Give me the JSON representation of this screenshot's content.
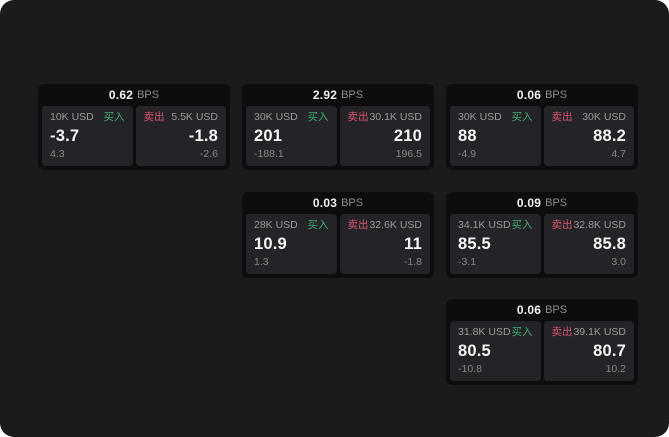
{
  "labels": {
    "bps": "BPS",
    "buy": "买入",
    "sell": "卖出"
  },
  "colors": {
    "background": "#1b1b1d",
    "card_background": "#0d0d0f",
    "tile_background": "#242428",
    "buy_green": "#40aa6e",
    "sell_red": "#d9546f",
    "value_white": "#f5f5f5",
    "muted_gray": "#9a9a9a"
  },
  "cards": [
    {
      "bps": "0.62",
      "col": 0,
      "row": 0,
      "buy": {
        "amount": "10K USD",
        "value": "-3.7",
        "sub": "4.3"
      },
      "sell": {
        "amount": "5.5K USD",
        "value": "-1.8",
        "sub": "-2.6"
      }
    },
    {
      "bps": "2.92",
      "col": 1,
      "row": 0,
      "buy": {
        "amount": "30K USD",
        "value": "201",
        "sub": "-188.1"
      },
      "sell": {
        "amount": "30.1K USD",
        "value": "210",
        "sub": "196.5"
      }
    },
    {
      "bps": "0.06",
      "col": 2,
      "row": 0,
      "buy": {
        "amount": "30K USD",
        "value": "88",
        "sub": "-4.9"
      },
      "sell": {
        "amount": "30K USD",
        "value": "88.2",
        "sub": "4.7"
      }
    },
    {
      "bps": "0.03",
      "col": 1,
      "row": 1,
      "buy": {
        "amount": "28K USD",
        "value": "10.9",
        "sub": "1.3"
      },
      "sell": {
        "amount": "32.6K USD",
        "value": "11",
        "sub": "-1.8"
      }
    },
    {
      "bps": "0.09",
      "col": 2,
      "row": 1,
      "buy": {
        "amount": "34.1K USD",
        "value": "85.5",
        "sub": "-3.1"
      },
      "sell": {
        "amount": "32.8K USD",
        "value": "85.8",
        "sub": "3.0"
      }
    },
    {
      "bps": "0.06",
      "col": 2,
      "row": 2,
      "buy": {
        "amount": "31.8K USD",
        "value": "80.5",
        "sub": "-10.8"
      },
      "sell": {
        "amount": "39.1K USD",
        "value": "80.7",
        "sub": "10.2"
      }
    }
  ]
}
